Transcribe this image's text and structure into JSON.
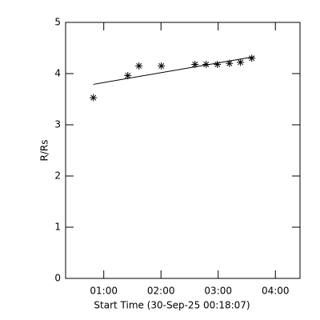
{
  "chart_data": {
    "type": "scatter",
    "xlabel": "Start Time (30-Sep-25 00:18:07)",
    "ylabel": "R/Rs",
    "x": [
      0.818,
      1.42,
      1.615,
      2.007,
      2.594,
      2.79,
      2.986,
      3.196,
      3.39,
      3.587
    ],
    "values": [
      3.53,
      3.96,
      4.15,
      4.15,
      4.18,
      4.18,
      4.18,
      4.2,
      4.22,
      4.3
    ],
    "fit_x": [
      0.818,
      3.63
    ],
    "fit_values": [
      3.79,
      4.33
    ],
    "color": "#000000",
    "xlim": [
      0.333,
      4.43
    ],
    "ylim": [
      0,
      5
    ],
    "xticks": [
      {
        "value": 1,
        "label": "01:00"
      },
      {
        "value": 2,
        "label": "02:00"
      },
      {
        "value": 3,
        "label": "03:00"
      },
      {
        "value": 4,
        "label": "04:00"
      }
    ],
    "yticks": [
      0,
      1,
      2,
      3,
      4,
      5
    ]
  }
}
